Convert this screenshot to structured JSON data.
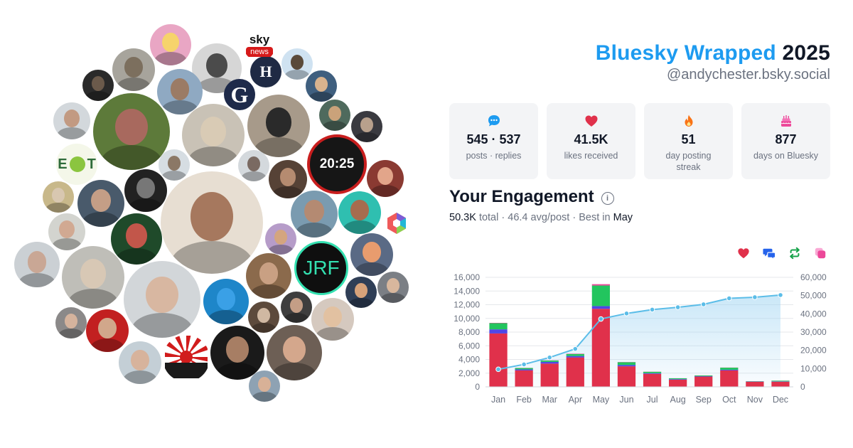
{
  "header": {
    "brand": "Bluesky Wrapped",
    "year": "2025",
    "handle": "@andychester.bsky.social"
  },
  "stats": [
    {
      "icon": "chat-bubble-icon",
      "value": "545 · 537",
      "label": "posts · replies",
      "color": "#1d9bf0"
    },
    {
      "icon": "heart-icon",
      "value": "41.5K",
      "label": "likes received",
      "color": "#e0314b"
    },
    {
      "icon": "flame-icon",
      "value": "51",
      "label": "day posting streak",
      "color": "#f97316"
    },
    {
      "icon": "cake-icon",
      "value": "877",
      "label": "days on Bluesky",
      "color": "#ec4899"
    }
  ],
  "engagement": {
    "title": "Your Engagement",
    "total": "50.3K",
    "total_label": "total",
    "avg": "46.4 avg/post",
    "best_label": "Best in",
    "best_month": "May",
    "separator": "·"
  },
  "legend": [
    {
      "icon": "heart-icon",
      "color": "#e0314b"
    },
    {
      "icon": "reply-icon",
      "color": "#2563eb"
    },
    {
      "icon": "repost-icon",
      "color": "#16a34a"
    },
    {
      "icon": "quote-icon",
      "color": "#ec4899"
    }
  ],
  "avatar_cluster": {
    "logos": [
      "sky",
      "news",
      "H",
      "G",
      "E",
      "T",
      "20:25",
      "JRF"
    ]
  },
  "chart_data": {
    "type": "bar",
    "categories": [
      "Jan",
      "Feb",
      "Mar",
      "Apr",
      "May",
      "Jun",
      "Jul",
      "Aug",
      "Sep",
      "Oct",
      "Nov",
      "Dec"
    ],
    "series": [
      {
        "name": "likes",
        "color": "#e0314b",
        "values": [
          7800,
          2400,
          3400,
          4300,
          11400,
          3000,
          1900,
          1050,
          1500,
          2400,
          750,
          750
        ]
      },
      {
        "name": "replies",
        "color": "#4f46e5",
        "values": [
          600,
          150,
          250,
          200,
          400,
          200,
          100,
          80,
          60,
          100,
          30,
          50
        ]
      },
      {
        "name": "reposts",
        "color": "#22c55e",
        "values": [
          900,
          200,
          200,
          300,
          3000,
          400,
          200,
          120,
          100,
          300,
          40,
          100
        ]
      },
      {
        "name": "quotes",
        "color": "#ec4899",
        "values": [
          50,
          20,
          20,
          50,
          200,
          30,
          20,
          10,
          10,
          20,
          5,
          10
        ]
      }
    ],
    "cumulative": {
      "name": "cumulative",
      "color": "#5bbde8",
      "values": [
        9600,
        12300,
        16100,
        20800,
        37200,
        40200,
        42300,
        43600,
        45200,
        48500,
        49100,
        50300
      ]
    },
    "ylim": [
      0,
      16000
    ],
    "yticks": [
      "0",
      "2,000",
      "4,000",
      "6,000",
      "8,000",
      "10,000",
      "12,000",
      "14,000",
      "16,000"
    ],
    "y2lim": [
      0,
      60000
    ],
    "y2ticks": [
      "0",
      "10,000",
      "20,000",
      "30,000",
      "40,000",
      "50,000",
      "60,000"
    ],
    "grid": true
  }
}
